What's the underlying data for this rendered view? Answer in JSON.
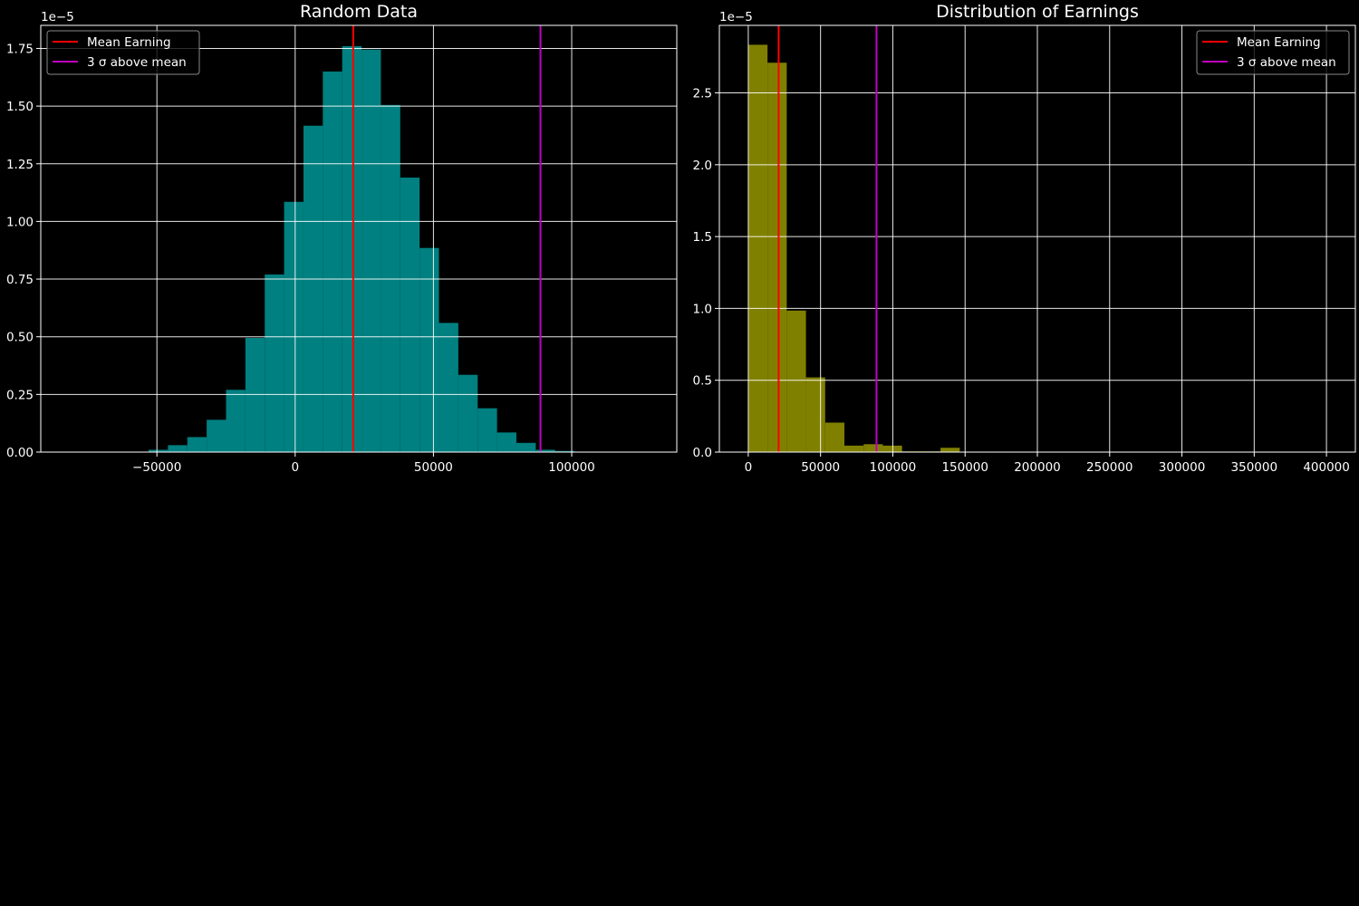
{
  "figure": {
    "background": "#000000",
    "foreground": "#ffffff"
  },
  "chart_data": [
    {
      "type": "bar",
      "title": "Random Data",
      "xlabel": "",
      "ylabel": "",
      "y_offset_label": "1e−5",
      "xlim": [
        -92000,
        138000
      ],
      "ylim": [
        0,
        1.85
      ],
      "x_ticks": [
        -50000,
        0,
        50000,
        100000
      ],
      "x_tick_labels": [
        "−50000",
        "0",
        "50000",
        "100000"
      ],
      "y_ticks": [
        0,
        0.25,
        0.5,
        0.75,
        1.0,
        1.25,
        1.5,
        1.75
      ],
      "y_tick_labels": [
        "0.00",
        "0.25",
        "0.50",
        "0.75",
        "1.00",
        "1.25",
        "1.50",
        "1.75"
      ],
      "grid": true,
      "bar_color": "#008080",
      "bar_edges": [
        -53000,
        -46000,
        -39000,
        -32000,
        -25000,
        -18000,
        -11000,
        -4000,
        3000,
        10000,
        17000,
        24000,
        31000,
        38000,
        45000,
        52000,
        59000,
        66000,
        73000,
        80000,
        87000,
        94000,
        101000
      ],
      "bar_values": [
        0.01,
        0.03,
        0.065,
        0.14,
        0.27,
        0.495,
        0.77,
        1.085,
        1.415,
        1.65,
        1.76,
        1.745,
        1.505,
        1.19,
        0.885,
        0.56,
        0.335,
        0.19,
        0.085,
        0.04,
        0.01,
        0.005
      ],
      "vlines": [
        {
          "label": "Mean Earning",
          "x": 21000,
          "color": "#ff0000"
        },
        {
          "label": "3 σ  above mean",
          "x": 88700,
          "color": "#bf00bf"
        }
      ],
      "legend_position": "upper left"
    },
    {
      "type": "bar",
      "title": "Distribution of Earnings",
      "xlabel": "",
      "ylabel": "",
      "y_offset_label": "1e−5",
      "xlim": [
        -20000,
        420000
      ],
      "ylim": [
        0,
        2.97
      ],
      "x_ticks": [
        0,
        50000,
        100000,
        150000,
        200000,
        250000,
        300000,
        350000,
        400000
      ],
      "x_tick_labels": [
        "0",
        "50000",
        "100000",
        "150000",
        "200000",
        "250000",
        "300000",
        "350000",
        "400000"
      ],
      "y_ticks": [
        0,
        0.5,
        1.0,
        1.5,
        2.0,
        2.5
      ],
      "y_tick_labels": [
        "0.0",
        "0.5",
        "1.0",
        "1.5",
        "2.0",
        "2.5"
      ],
      "grid": true,
      "bar_color": "#808000",
      "bar_edges": [
        0,
        13300,
        26600,
        39900,
        53200,
        66500,
        79800,
        93100,
        106400,
        119700,
        133000,
        146300
      ],
      "bar_values": [
        2.835,
        2.71,
        0.985,
        0.52,
        0.205,
        0.045,
        0.055,
        0.045,
        0.005,
        0.005,
        0.03
      ],
      "vlines": [
        {
          "label": "Mean Earning",
          "x": 21000,
          "color": "#ff0000"
        },
        {
          "label": "3 σ  above mean",
          "x": 88700,
          "color": "#bf00bf"
        }
      ],
      "legend_position": "upper right"
    }
  ]
}
